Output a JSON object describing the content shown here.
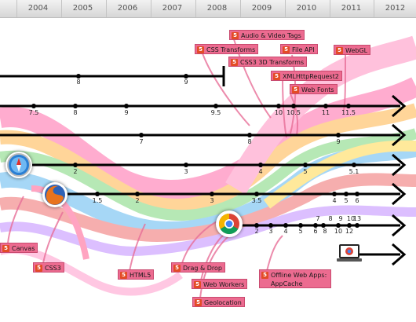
{
  "years": [
    "2004",
    "2005",
    "2006",
    "2007",
    "2008",
    "2009",
    "2010",
    "2011",
    "2012"
  ],
  "features": {
    "audio_video": "Audio & Video Tags",
    "css_transforms": "CSS Transforms",
    "file_api": "File API",
    "css3d": "CSS3 3D Transforms",
    "webgl": "WebGL",
    "xhr2": "XMLHttpRequest2",
    "web_fonts": "Web Fonts",
    "canvas": "Canvas",
    "css3": "CSS3",
    "html5": "HTML5",
    "drag_drop": "Drag & Drop",
    "web_workers": "Web Workers",
    "geolocation": "Geolocation",
    "offline": "Offline Web Apps: AppCache"
  },
  "html5_badge": "5",
  "timelines": {
    "ie": [
      "8",
      "9"
    ],
    "opera": [
      "7.5",
      "8",
      "9",
      "9.5",
      "10",
      "10.5",
      "11",
      "11.5"
    ],
    "konqueror": [
      "7",
      "8",
      "9"
    ],
    "safari": [
      "2",
      "3",
      "4",
      "5",
      "5.1"
    ],
    "firefox": [
      "1.5",
      "2",
      "3",
      "3.5",
      "4",
      "5",
      "6"
    ],
    "chrome_top": [
      "7",
      "8",
      "9",
      "10",
      "11",
      "13"
    ],
    "chrome_bottom": [
      "2",
      "3",
      "4",
      "5",
      "6",
      "8",
      "10",
      "12"
    ]
  },
  "icons": {
    "safari": "safari-icon",
    "firefox": "firefox-icon",
    "chrome": "chrome-icon",
    "chromebook": "chrome-laptop-icon"
  }
}
